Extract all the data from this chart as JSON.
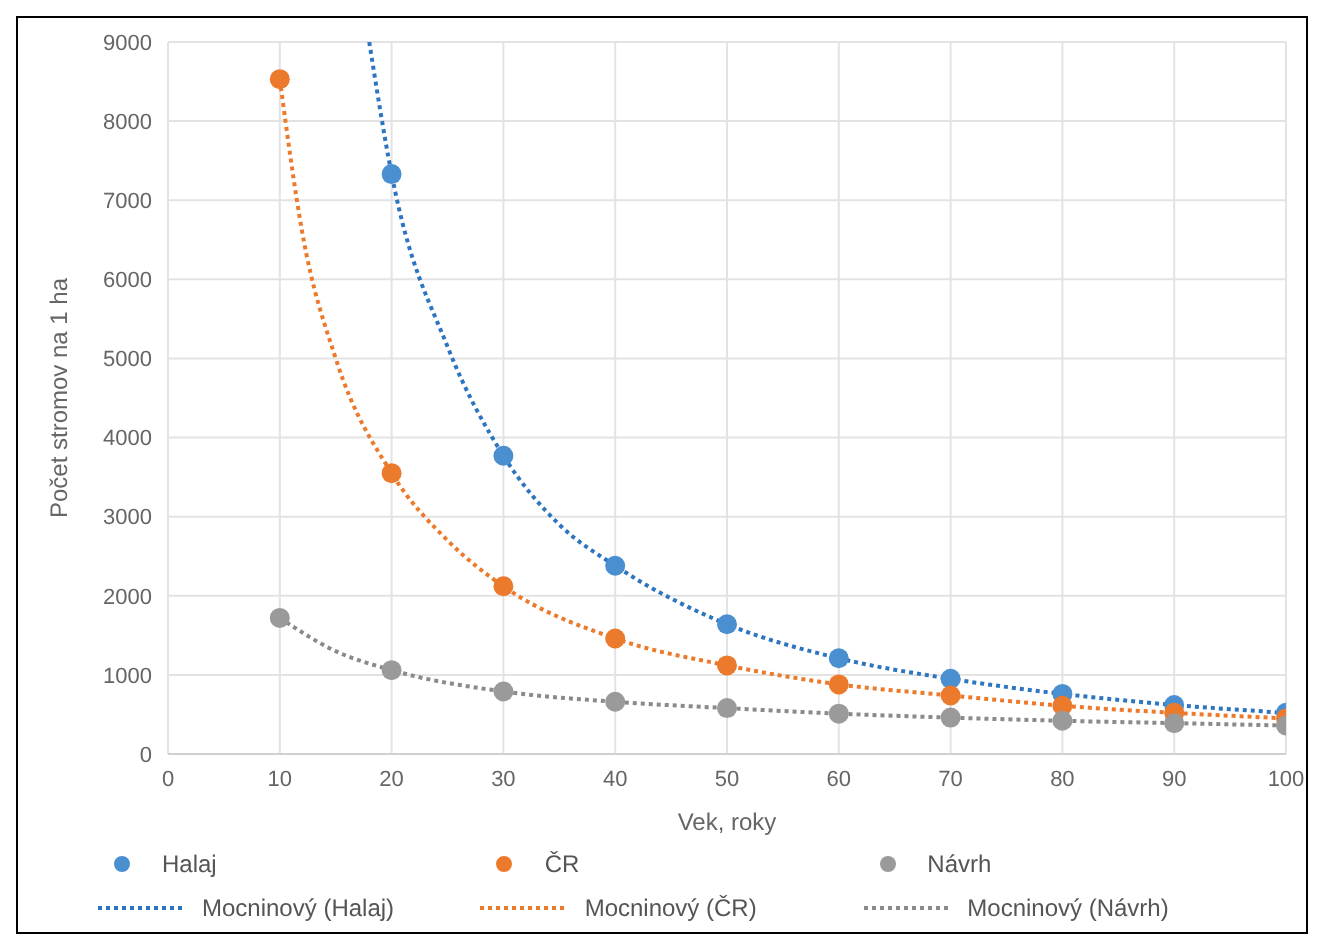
{
  "chart_data": {
    "type": "scatter",
    "xlabel": "Vek, roky",
    "ylabel": "Počet stromov na 1 ha",
    "xlim": [
      0,
      100
    ],
    "xticks": [
      0,
      10,
      20,
      30,
      40,
      50,
      60,
      70,
      80,
      90,
      100
    ],
    "ylim": [
      0,
      9000
    ],
    "yticks": [
      0,
      1000,
      2000,
      3000,
      4000,
      5000,
      6000,
      7000,
      8000,
      9000
    ],
    "grid": true,
    "legend": "bottom",
    "marker": "circle",
    "series": [
      {
        "name": "Halaj",
        "color": "#4a8fd0",
        "x": [
          20,
          30,
          40,
          50,
          60,
          70,
          80,
          90,
          100
        ],
        "values": [
          7330,
          3770,
          2380,
          1640,
          1210,
          950,
          760,
          620,
          520
        ]
      },
      {
        "name": "ČR",
        "color": "#ec7a2c",
        "x": [
          10,
          20,
          30,
          40,
          50,
          60,
          70,
          80,
          90,
          100
        ],
        "values": [
          8530,
          3550,
          2120,
          1460,
          1120,
          880,
          740,
          610,
          520,
          450
        ]
      },
      {
        "name": "Návrh",
        "color": "#9a9a9a",
        "x": [
          10,
          20,
          30,
          40,
          50,
          60,
          70,
          80,
          90,
          100
        ],
        "values": [
          1720,
          1060,
          790,
          660,
          580,
          510,
          460,
          420,
          390,
          360
        ]
      },
      {
        "name": "Mocninový (Halaj)",
        "type": "line",
        "line_style": "dotted",
        "marker": "none",
        "color": "#2e75c0",
        "x": [
          18,
          20,
          25,
          30,
          35,
          40,
          50,
          60,
          70,
          80,
          90,
          100
        ],
        "values": [
          9000,
          7330,
          5150,
          3770,
          2900,
          2380,
          1640,
          1210,
          950,
          760,
          620,
          520
        ]
      },
      {
        "name": "Mocninový (ČR)",
        "type": "line",
        "line_style": "dotted",
        "marker": "none",
        "color": "#ec7a2c",
        "x": [
          10,
          12,
          15,
          20,
          25,
          30,
          40,
          50,
          60,
          70,
          80,
          90,
          100
        ],
        "values": [
          8530,
          6600,
          5000,
          3550,
          2700,
          2120,
          1460,
          1120,
          880,
          740,
          610,
          520,
          450
        ]
      },
      {
        "name": "Mocninový (Návrh)",
        "type": "line",
        "line_style": "dotted",
        "marker": "none",
        "color": "#8a8a8a",
        "x": [
          10,
          15,
          20,
          30,
          40,
          50,
          60,
          70,
          80,
          90,
          100
        ],
        "values": [
          1720,
          1300,
          1060,
          790,
          660,
          580,
          510,
          460,
          420,
          390,
          360
        ]
      }
    ]
  }
}
